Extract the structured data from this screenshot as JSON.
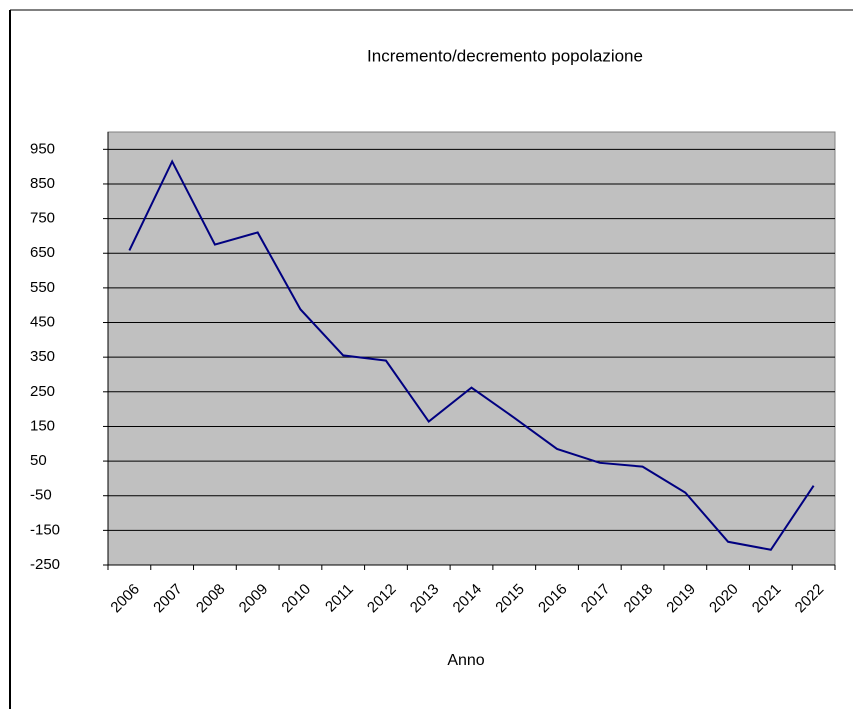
{
  "chart_data": {
    "type": "line",
    "title": "Incremento/decremento popolazione",
    "x_label": "Anno",
    "categories": [
      "2006",
      "2007",
      "2008",
      "2009",
      "2010",
      "2011",
      "2012",
      "2013",
      "2014",
      "2015",
      "2016",
      "2017",
      "2018",
      "2019",
      "2020",
      "2021",
      "2022"
    ],
    "values": [
      658,
      915,
      675,
      710,
      488,
      355,
      340,
      164,
      262,
      175,
      85,
      45,
      34,
      -41,
      -183,
      -206,
      -21
    ],
    "color": "#000080",
    "ylim": [
      -250,
      1000
    ],
    "yticks": [
      -250,
      -150,
      -50,
      50,
      150,
      250,
      350,
      450,
      550,
      650,
      750,
      850,
      950
    ],
    "grid": true
  }
}
